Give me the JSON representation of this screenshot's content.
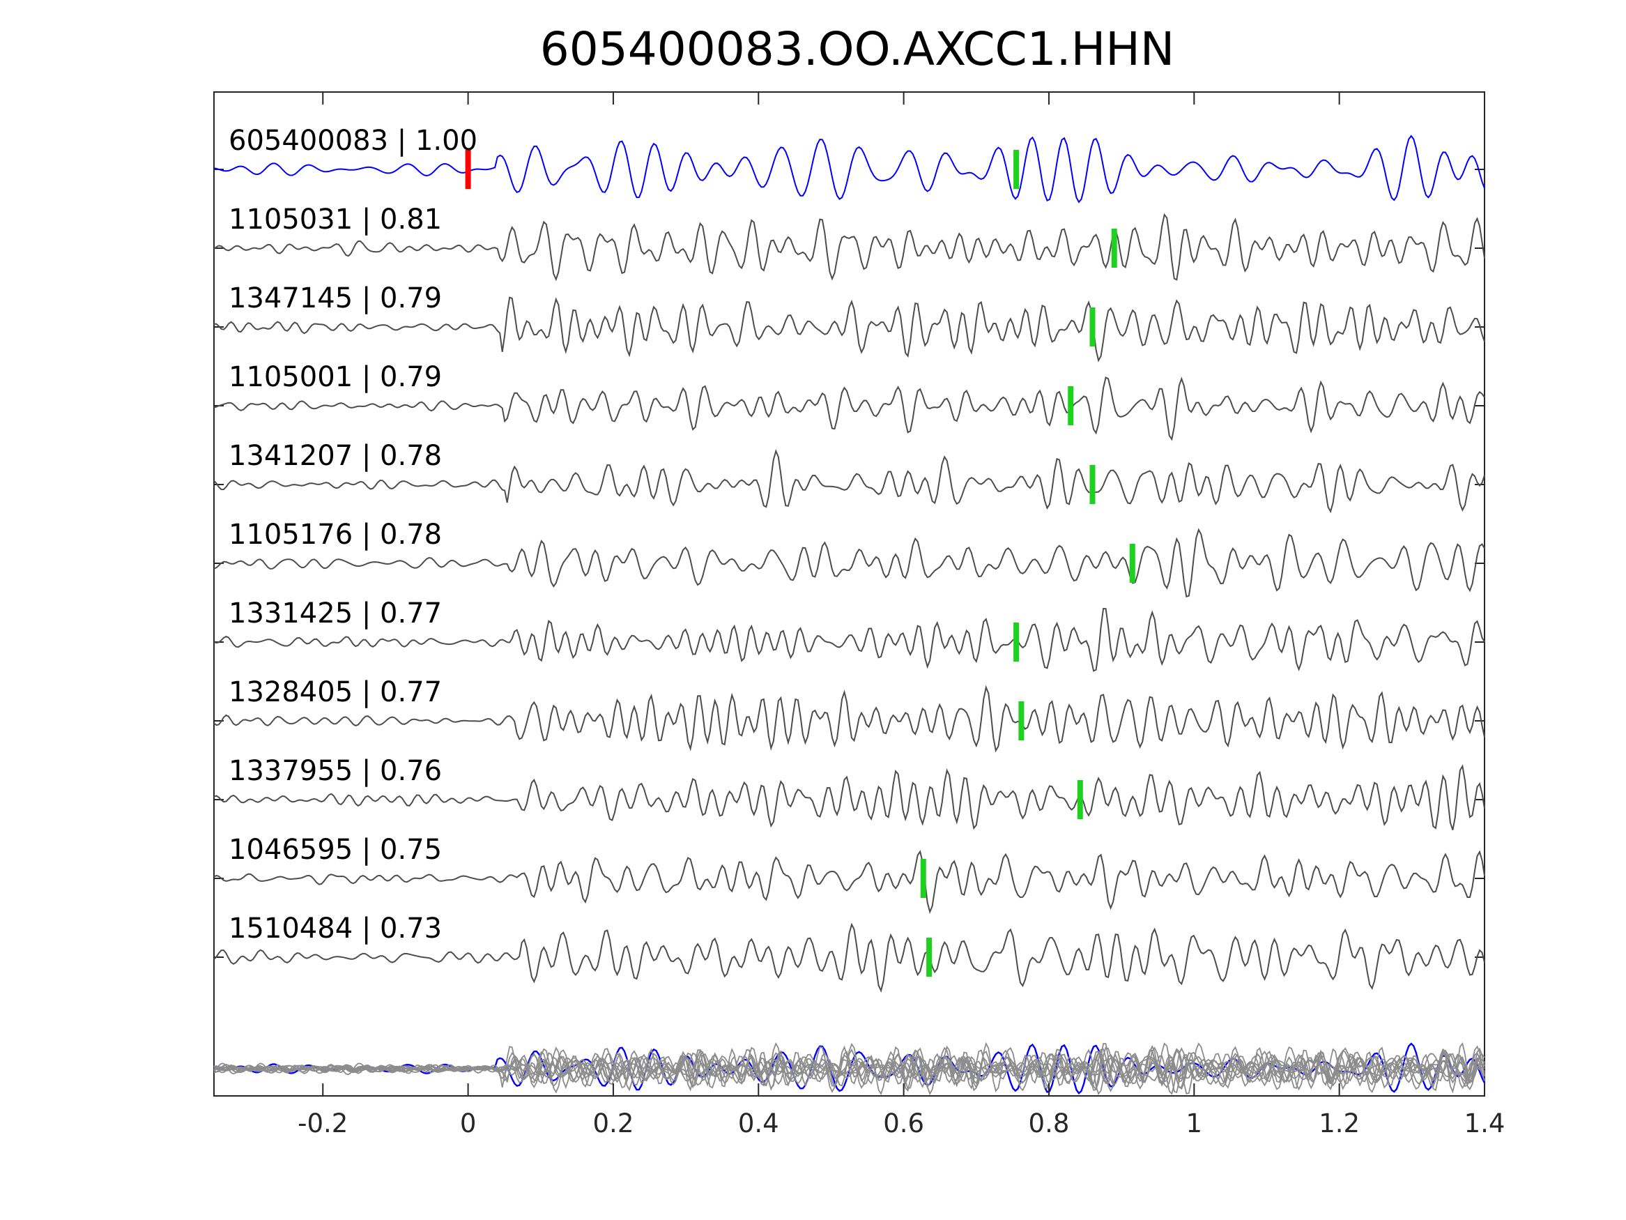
{
  "chart_data": {
    "type": "line",
    "title": "605400083.OO.AXCC1.HHN",
    "xlabel": "",
    "ylabel": "",
    "xlim": [
      -0.35,
      1.4
    ],
    "xticks": [
      -0.2,
      0,
      0.2,
      0.4,
      0.6,
      0.8,
      1,
      1.2,
      1.4
    ],
    "xtick_labels": [
      "-0.2",
      "0",
      "0.2",
      "0.4",
      "0.6",
      "0.8",
      "1",
      "1.2",
      "1.4"
    ],
    "grid": false,
    "colors": {
      "template": "#0000ff",
      "match": "#4d4d4d",
      "overlay": "#8c8c8c",
      "reference_pick": "#ff0000",
      "match_pick": "#1fd11f",
      "axes": "#262626"
    },
    "reference_pick_x": 0,
    "series": [
      {
        "name": "605400083 | 1.00",
        "pick_x": 0.755,
        "color": "#0000ff"
      },
      {
        "name": "1105031 | 0.81",
        "pick_x": 0.89
      },
      {
        "name": "1347145 | 0.79",
        "pick_x": 0.86
      },
      {
        "name": "1105001 | 0.79",
        "pick_x": 0.83
      },
      {
        "name": "1341207 | 0.78",
        "pick_x": 0.86
      },
      {
        "name": "1105176 | 0.78",
        "pick_x": 0.915
      },
      {
        "name": "1331425 | 0.77",
        "pick_x": 0.755
      },
      {
        "name": "1328405 | 0.77",
        "pick_x": 0.762
      },
      {
        "name": "1337955 | 0.76",
        "pick_x": 0.843
      },
      {
        "name": "1046595 | 0.75",
        "pick_x": 0.627
      },
      {
        "name": "1510484 | 0.73",
        "pick_x": 0.635
      }
    ],
    "overlay_row": "all traces overlaid"
  }
}
